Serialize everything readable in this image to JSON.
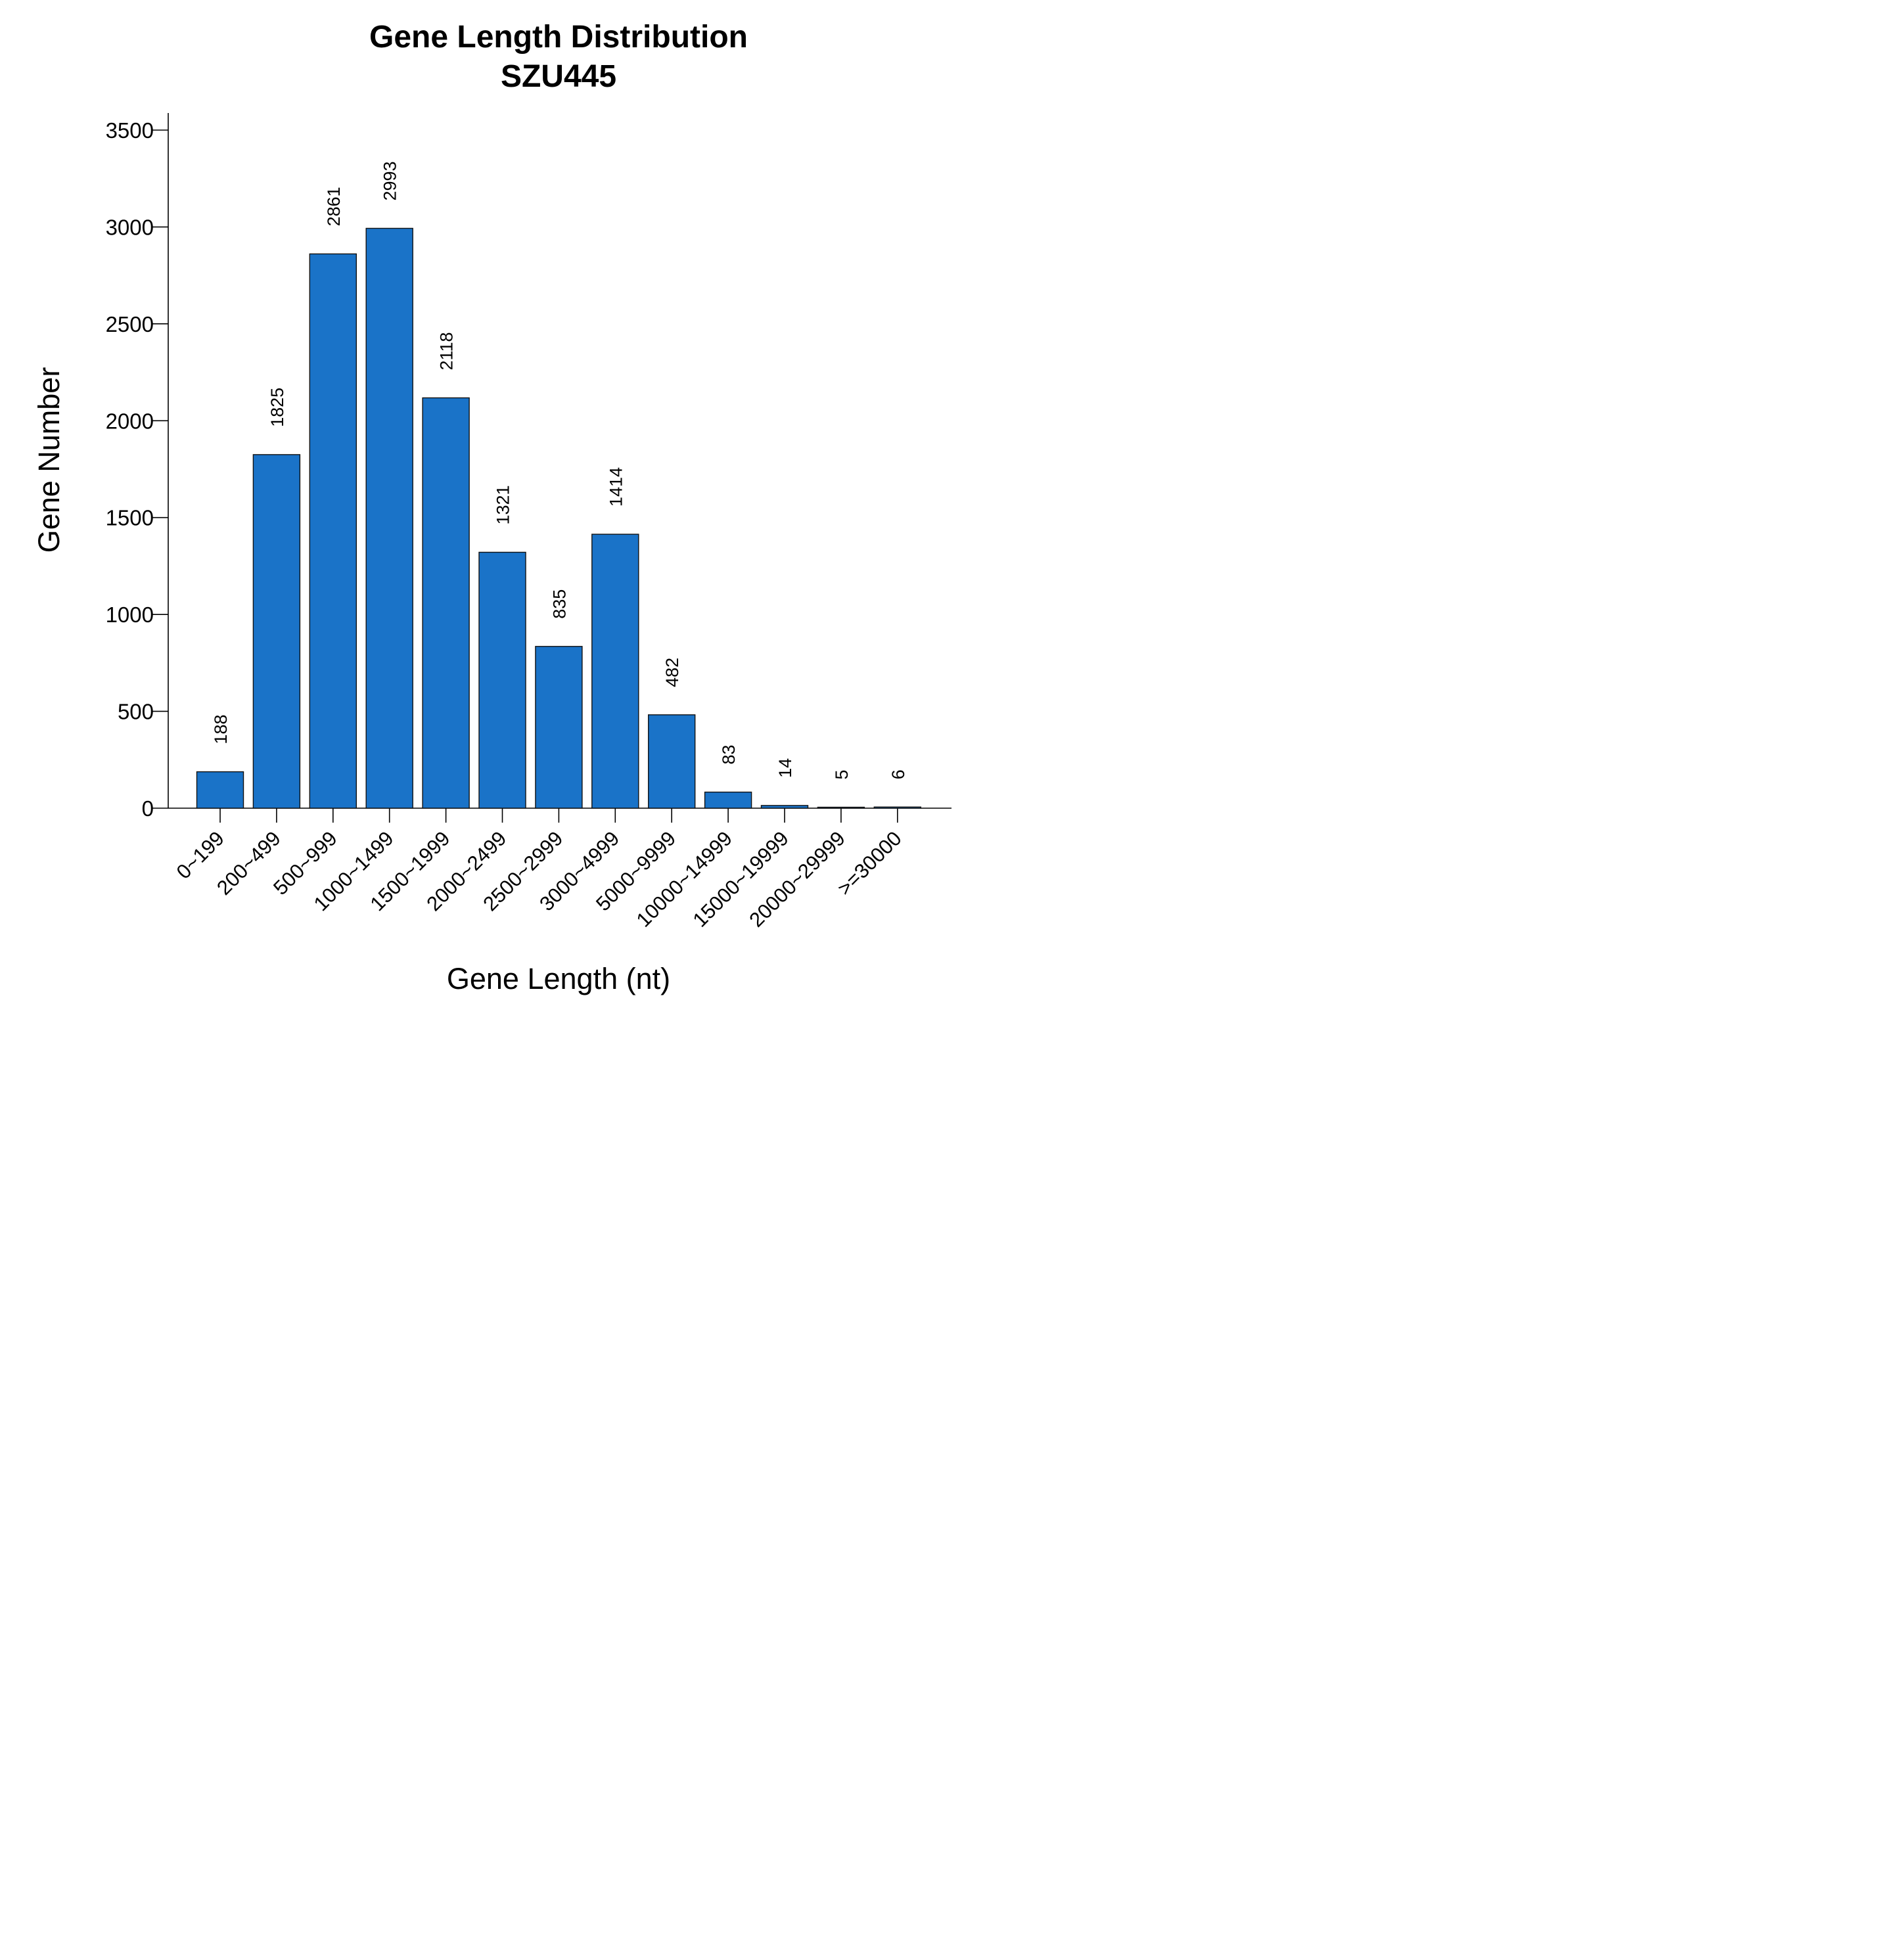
{
  "chart_data": {
    "type": "bar",
    "title": "Gene Length Distribution",
    "subtitle": "SZU445",
    "xlabel": "Gene Length (nt)",
    "ylabel": "Gene Number",
    "categories": [
      "0~199",
      "200~499",
      "500~999",
      "1000~1499",
      "1500~1999",
      "2000~2499",
      "2500~2999",
      "3000~4999",
      "5000~9999",
      "10000~14999",
      "15000~19999",
      "20000~29999",
      ">=30000"
    ],
    "values": [
      188,
      1825,
      2861,
      2993,
      2118,
      1321,
      835,
      1414,
      482,
      83,
      14,
      5,
      6
    ],
    "data_labels": [
      "188",
      "1825",
      "2861",
      "2993",
      "2118",
      "1321",
      "835",
      "1414",
      "482",
      "83",
      "14",
      "5",
      "6"
    ],
    "ylim": [
      0,
      3500
    ],
    "yticks": [
      0,
      500,
      1000,
      1500,
      2000,
      2500,
      3000,
      3500
    ],
    "ytick_labels": [
      "0",
      "500",
      "1000",
      "1500",
      "2000",
      "2500",
      "3000",
      "3500"
    ],
    "bar_color": "#1A73C8",
    "grid": false,
    "legend": "none"
  }
}
